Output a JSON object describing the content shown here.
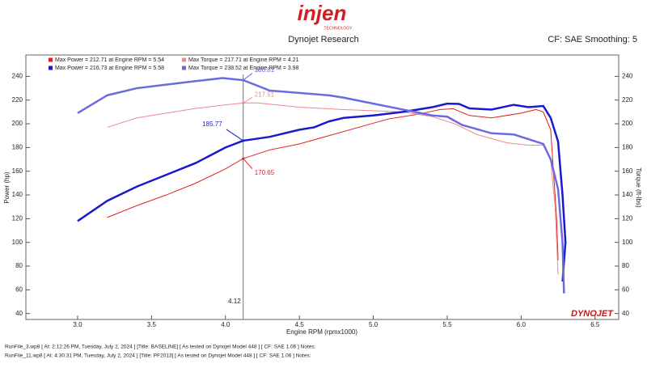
{
  "header": {
    "brand": "injen",
    "brand_sub": "TECHNOLOGY",
    "title": "Dynojet Research",
    "settings": "CF: SAE Smoothing: 5"
  },
  "watermark": "DYNOJET",
  "footer": [
    "RunFile_3.wp8 [ At: 2:12:26 PM, Tuesday, July 2, 2024 ] [Title: BASELINE]  [ As tested on Dynojet Model 448 ]  [ CF: SAE 1.06 ] Notes:",
    "RunFile_11.wp8 [ At: 4:30:31 PM, Tuesday, July 2, 2024 ] [Title: PF2013]  [ As tested on Dynojet Model 448 ]  [ CF: SAE 1.06 ] Notes:"
  ],
  "chart_data": {
    "type": "line",
    "x_label": "Engine RPM (rpmx1000)",
    "y_label": "Power (hp)",
    "y2_label": "Torque (ft-lbs)",
    "xlim": [
      2.65,
      6.66
    ],
    "ylim": [
      35,
      258
    ],
    "y2lim": [
      35,
      258
    ],
    "xticks": [
      {
        "value": 3,
        "label": "3.0"
      },
      3.5,
      {
        "value": 4,
        "label": "4.0"
      },
      4.5,
      {
        "value": 5,
        "label": "5.0"
      },
      5.5,
      {
        "value": 6,
        "label": "6.0"
      },
      6.5
    ],
    "yticks": [
      40,
      60,
      80,
      100,
      120,
      140,
      160,
      180,
      200,
      220,
      240
    ],
    "y2ticks": [
      40,
      60,
      80,
      100,
      120,
      140,
      160,
      180,
      200,
      220,
      240
    ],
    "grid": false,
    "series": [
      {
        "name": "Max Power = 212.71 at Engine RPM = 5.54",
        "color": "#e02020",
        "width": 1,
        "axis": "y",
        "x": [
          3.2,
          3.4,
          3.6,
          3.8,
          4.0,
          4.12,
          4.3,
          4.5,
          4.7,
          4.9,
          5.1,
          5.3,
          5.45,
          5.54,
          5.65,
          5.8,
          6.0,
          6.1,
          6.15,
          6.2,
          6.24,
          6.25
        ],
        "values": [
          121,
          131,
          140,
          150,
          162,
          170.65,
          178,
          183,
          190,
          197,
          204,
          208,
          212,
          212.71,
          207,
          205,
          209,
          212,
          210,
          195,
          120,
          85
        ]
      },
      {
        "name": "Max Torque = 217.71 at Engine RPM = 4.21",
        "color": "#f08a8a",
        "width": 1,
        "axis": "y2",
        "x": [
          3.2,
          3.4,
          3.6,
          3.8,
          4.0,
          4.12,
          4.21,
          4.5,
          4.8,
          5.0,
          5.2,
          5.4,
          5.55,
          5.7,
          5.9,
          6.05,
          6.15,
          6.2,
          6.23,
          6.25
        ],
        "values": [
          197,
          205,
          209,
          213,
          216,
          217.51,
          217.71,
          214,
          212,
          211,
          210,
          206,
          200,
          191,
          184,
          182,
          182,
          170,
          130,
          73
        ]
      },
      {
        "name": "Max Power = 216.73 at Engine RPM = 5.58",
        "color": "#1a1acc",
        "width": 2.5,
        "axis": "y",
        "x": [
          3.0,
          3.2,
          3.4,
          3.6,
          3.8,
          4.0,
          4.12,
          4.3,
          4.5,
          4.6,
          4.7,
          4.8,
          5.0,
          5.2,
          5.4,
          5.5,
          5.58,
          5.65,
          5.8,
          5.95,
          6.05,
          6.15,
          6.2,
          6.25,
          6.28,
          6.3,
          6.28
        ],
        "values": [
          118,
          135,
          147,
          157,
          167,
          180,
          185.77,
          189,
          195,
          197,
          202,
          205,
          207,
          210,
          214,
          217,
          216.73,
          213,
          212,
          216,
          214,
          215,
          205,
          185,
          140,
          100,
          67
        ]
      },
      {
        "name": "Max Torque = 238.52 at Engine RPM = 3.98",
        "color": "#6b6be0",
        "width": 2.5,
        "axis": "y2",
        "x": [
          3.0,
          3.2,
          3.4,
          3.6,
          3.8,
          3.98,
          4.12,
          4.3,
          4.5,
          4.7,
          4.8,
          5.0,
          5.2,
          5.4,
          5.5,
          5.6,
          5.8,
          5.95,
          6.05,
          6.15,
          6.2,
          6.25,
          6.28,
          6.29
        ],
        "values": [
          209,
          224,
          230,
          233,
          236,
          238.52,
          236.81,
          228,
          226,
          224,
          222,
          217,
          212,
          207,
          206,
          199,
          192,
          191,
          187,
          183,
          170,
          145,
          100,
          57
        ]
      }
    ],
    "cursor": {
      "x": 4.12,
      "values": [
        170.65,
        217.51,
        185.77,
        236.81
      ]
    }
  }
}
